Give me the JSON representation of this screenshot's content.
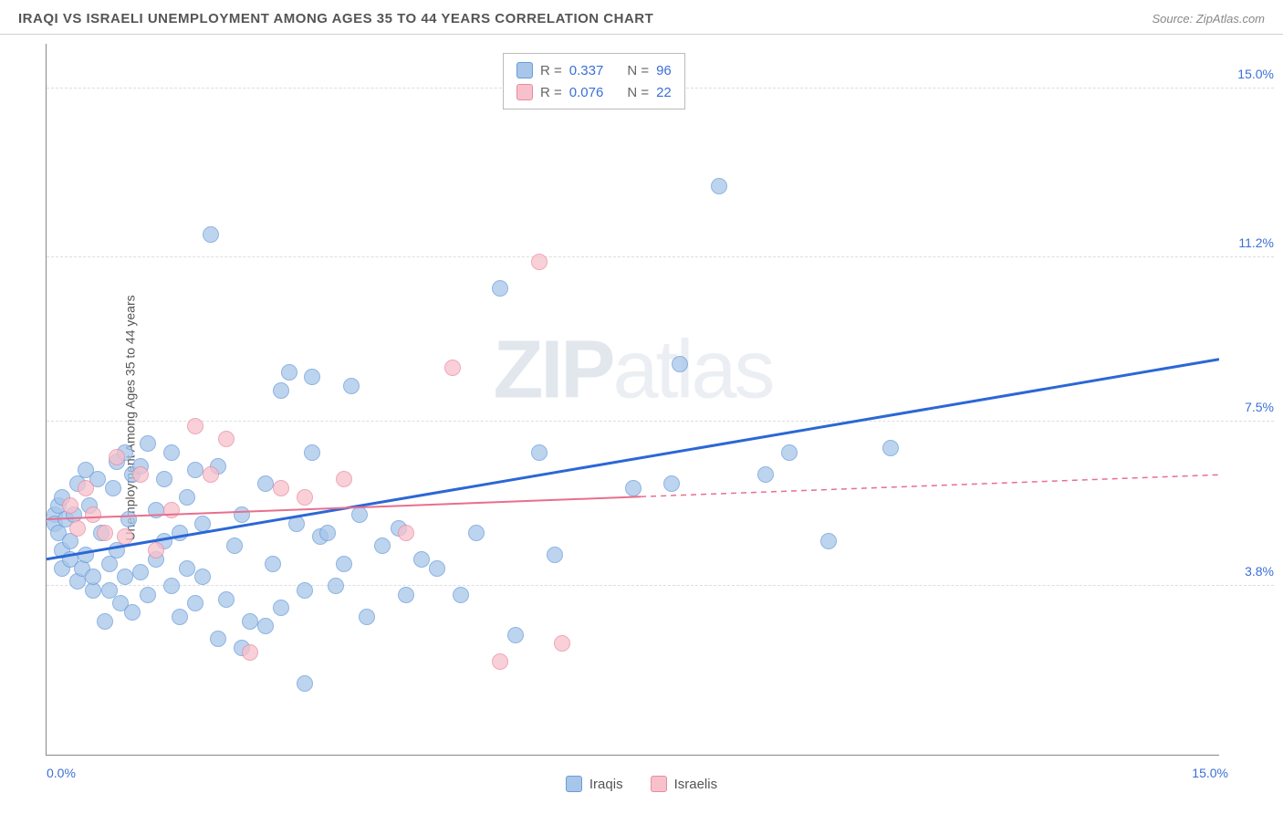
{
  "title": "IRAQI VS ISRAELI UNEMPLOYMENT AMONG AGES 35 TO 44 YEARS CORRELATION CHART",
  "source": "Source: ZipAtlas.com",
  "ylabel": "Unemployment Among Ages 35 to 44 years",
  "watermark_zip": "ZIP",
  "watermark_atlas": "atlas",
  "chart": {
    "type": "scatter",
    "xlim": [
      0,
      15
    ],
    "ylim": [
      0,
      16
    ],
    "background_color": "#ffffff",
    "grid_color": "#dddddd",
    "grid_dash": "dashed",
    "xticks": [
      {
        "v": 0,
        "label": "0.0%"
      },
      {
        "v": 15,
        "label": "15.0%"
      }
    ],
    "yticks": [
      {
        "v": 3.8,
        "label": "3.8%"
      },
      {
        "v": 7.5,
        "label": "7.5%"
      },
      {
        "v": 11.2,
        "label": "11.2%"
      },
      {
        "v": 15.0,
        "label": "15.0%"
      }
    ],
    "series": [
      {
        "name": "Iraqis",
        "marker_color_fill": "#a7c6ea",
        "marker_color_stroke": "#6a9bd8",
        "marker_opacity": 0.75,
        "marker_size": 18,
        "line_color": "#2b67d6",
        "line_width": 3,
        "line_y_at_x0": 4.4,
        "line_y_at_xmax": 8.9,
        "line_extent_x": 15,
        "line_solid_until": 15,
        "R": "0.337",
        "N": "96",
        "points": [
          [
            0.1,
            5.4
          ],
          [
            0.1,
            5.2
          ],
          [
            0.15,
            5.0
          ],
          [
            0.15,
            5.6
          ],
          [
            0.2,
            4.6
          ],
          [
            0.2,
            5.8
          ],
          [
            0.25,
            5.3
          ],
          [
            0.2,
            4.2
          ],
          [
            0.3,
            4.8
          ],
          [
            0.3,
            4.4
          ],
          [
            0.35,
            5.4
          ],
          [
            0.4,
            3.9
          ],
          [
            0.4,
            6.1
          ],
          [
            0.45,
            4.2
          ],
          [
            0.5,
            4.5
          ],
          [
            0.5,
            6.4
          ],
          [
            0.55,
            5.6
          ],
          [
            0.6,
            3.7
          ],
          [
            0.6,
            4.0
          ],
          [
            0.65,
            6.2
          ],
          [
            0.7,
            5.0
          ],
          [
            0.75,
            3.0
          ],
          [
            0.8,
            4.3
          ],
          [
            0.8,
            3.7
          ],
          [
            0.85,
            6.0
          ],
          [
            0.9,
            6.6
          ],
          [
            0.9,
            4.6
          ],
          [
            0.95,
            3.4
          ],
          [
            1.0,
            4.0
          ],
          [
            1.0,
            6.8
          ],
          [
            1.05,
            5.3
          ],
          [
            1.1,
            6.3
          ],
          [
            1.1,
            3.2
          ],
          [
            1.2,
            4.1
          ],
          [
            1.2,
            6.5
          ],
          [
            1.3,
            3.6
          ],
          [
            1.3,
            7.0
          ],
          [
            1.4,
            4.4
          ],
          [
            1.4,
            5.5
          ],
          [
            1.5,
            4.8
          ],
          [
            1.5,
            6.2
          ],
          [
            1.6,
            3.8
          ],
          [
            1.6,
            6.8
          ],
          [
            1.7,
            3.1
          ],
          [
            1.7,
            5.0
          ],
          [
            1.8,
            4.2
          ],
          [
            1.8,
            5.8
          ],
          [
            1.9,
            6.4
          ],
          [
            1.9,
            3.4
          ],
          [
            2.0,
            4.0
          ],
          [
            2.0,
            5.2
          ],
          [
            2.1,
            11.7
          ],
          [
            2.2,
            6.5
          ],
          [
            2.2,
            2.6
          ],
          [
            2.3,
            3.5
          ],
          [
            2.4,
            4.7
          ],
          [
            2.5,
            5.4
          ],
          [
            2.5,
            2.4
          ],
          [
            2.6,
            3.0
          ],
          [
            2.8,
            6.1
          ],
          [
            2.8,
            2.9
          ],
          [
            2.9,
            4.3
          ],
          [
            3.0,
            8.2
          ],
          [
            3.0,
            3.3
          ],
          [
            3.1,
            8.6
          ],
          [
            3.2,
            5.2
          ],
          [
            3.3,
            1.6
          ],
          [
            3.3,
            3.7
          ],
          [
            3.4,
            8.5
          ],
          [
            3.4,
            6.8
          ],
          [
            3.5,
            4.9
          ],
          [
            3.6,
            5.0
          ],
          [
            3.7,
            3.8
          ],
          [
            3.8,
            4.3
          ],
          [
            3.9,
            8.3
          ],
          [
            4.0,
            5.4
          ],
          [
            4.1,
            3.1
          ],
          [
            4.3,
            4.7
          ],
          [
            4.5,
            5.1
          ],
          [
            4.6,
            3.6
          ],
          [
            4.8,
            4.4
          ],
          [
            5.0,
            4.2
          ],
          [
            5.3,
            3.6
          ],
          [
            5.5,
            5.0
          ],
          [
            5.8,
            10.5
          ],
          [
            6.0,
            2.7
          ],
          [
            6.3,
            6.8
          ],
          [
            6.5,
            4.5
          ],
          [
            7.5,
            6.0
          ],
          [
            8.0,
            6.1
          ],
          [
            8.1,
            8.8
          ],
          [
            8.6,
            12.8
          ],
          [
            9.2,
            6.3
          ],
          [
            9.5,
            6.8
          ],
          [
            10.8,
            6.9
          ],
          [
            10.0,
            4.8
          ]
        ]
      },
      {
        "name": "Israelis",
        "marker_color_fill": "#f7c1cc",
        "marker_color_stroke": "#e98ba1",
        "marker_opacity": 0.75,
        "marker_size": 18,
        "line_color": "#e86f8e",
        "line_width": 2,
        "line_y_at_x0": 5.3,
        "line_y_at_xmax": 6.3,
        "line_extent_x": 15,
        "line_solid_until": 7.6,
        "R": "0.076",
        "N": "22",
        "points": [
          [
            0.3,
            5.6
          ],
          [
            0.4,
            5.1
          ],
          [
            0.5,
            6.0
          ],
          [
            0.6,
            5.4
          ],
          [
            0.75,
            5.0
          ],
          [
            0.9,
            6.7
          ],
          [
            1.0,
            4.9
          ],
          [
            1.2,
            6.3
          ],
          [
            1.4,
            4.6
          ],
          [
            1.6,
            5.5
          ],
          [
            1.9,
            7.4
          ],
          [
            2.1,
            6.3
          ],
          [
            2.3,
            7.1
          ],
          [
            2.6,
            2.3
          ],
          [
            3.0,
            6.0
          ],
          [
            3.3,
            5.8
          ],
          [
            3.8,
            6.2
          ],
          [
            4.6,
            5.0
          ],
          [
            5.2,
            8.7
          ],
          [
            5.8,
            2.1
          ],
          [
            6.3,
            11.1
          ],
          [
            6.6,
            2.5
          ]
        ]
      }
    ]
  },
  "legend_top": {
    "r_label": "R =",
    "n_label": "N ="
  },
  "legend_bottom_labels": [
    "Iraqis",
    "Israelis"
  ]
}
